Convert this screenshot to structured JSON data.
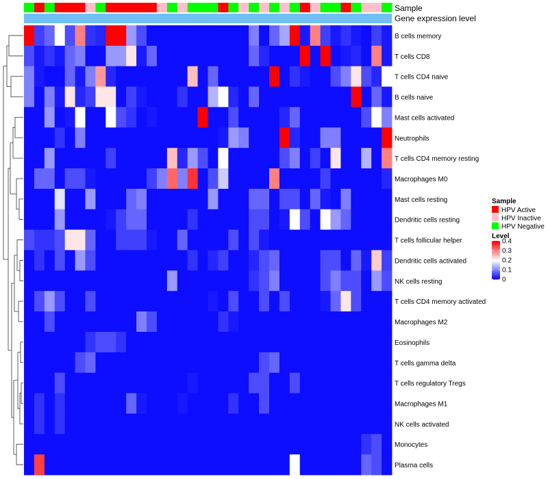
{
  "chart_data": {
    "type": "heatmap",
    "annotation_tracks": [
      "Sample",
      "Gene expression level"
    ],
    "rows": [
      "B cells memory",
      "T cells CD8",
      "T cells CD4 naive",
      "B cells naive",
      "Mast cells activated",
      "Neutrophils",
      "T cells CD4 memory resting",
      "Macrophages M0",
      "Mast cells resting",
      "Dendritic cells resting",
      "T cells follicular helper",
      "Dendritic cells activated",
      "NK cells resting",
      "T cells CD4 memory activated",
      "Macrophages M2",
      "Eosinophils",
      "T cells gamma delta",
      "T cells regulatory  Tregs",
      "Macrophages M1",
      "NK cells activated",
      "Monocytes",
      "Plasma cells"
    ],
    "sample_groups": [
      "N",
      "A",
      "N",
      "A",
      "A",
      "A",
      "I",
      "N",
      "A",
      "A",
      "A",
      "A",
      "A",
      "I",
      "N",
      "I",
      "N",
      "N",
      "N",
      "A",
      "N",
      "I",
      "N",
      "I",
      "N",
      "I",
      "N",
      "A",
      "I",
      "N",
      "N",
      "A",
      "N",
      "I",
      "I",
      "N"
    ],
    "values": [
      [
        0.4,
        0.05,
        0.08,
        0.2,
        0.06,
        0.3,
        0.04,
        0.03,
        0.4,
        0.4,
        0.12,
        0.06,
        0.01,
        0.01,
        0.01,
        0.01,
        0.01,
        0.01,
        0.01,
        0.01,
        0.01,
        0.01,
        0.1,
        0.01,
        0.08,
        0.13,
        0.4,
        0.02,
        0.3,
        0.05,
        0.02,
        0.04,
        0.02,
        0.01,
        0.05,
        0.02
      ],
      [
        0.06,
        0.02,
        0.04,
        0.02,
        0.08,
        0.1,
        0.01,
        0.01,
        0.12,
        0.12,
        0.22,
        0.02,
        0.08,
        0.01,
        0.01,
        0.01,
        0.01,
        0.01,
        0.01,
        0.01,
        0.01,
        0.01,
        0.08,
        0.03,
        0.01,
        0.01,
        0.01,
        0.4,
        0.01,
        0.4,
        0.01,
        0.02,
        0.03,
        0.01,
        0.3,
        0.02
      ],
      [
        0.1,
        0.02,
        0.01,
        0.01,
        0.08,
        0.02,
        0.1,
        0.28,
        0.03,
        0.01,
        0.01,
        0.01,
        0.01,
        0.01,
        0.01,
        0.01,
        0.25,
        0.01,
        0.08,
        0.01,
        0.01,
        0.01,
        0.01,
        0.01,
        0.4,
        0.01,
        0.04,
        0.02,
        0.01,
        0.01,
        0.06,
        0.1,
        0.22,
        0.06,
        0.03,
        0.2
      ],
      [
        0.1,
        0.01,
        0.1,
        0.02,
        0.22,
        0.03,
        0.05,
        0.22,
        0.22,
        0.01,
        0.05,
        0.02,
        0.01,
        0.01,
        0.01,
        0.04,
        0.01,
        0.01,
        0.14,
        0.2,
        0.03,
        0.01,
        0.08,
        0.01,
        0.01,
        0.01,
        0.01,
        0.01,
        0.01,
        0.01,
        0.01,
        0.01,
        0.4,
        0.01,
        0.08,
        0.02
      ],
      [
        0.01,
        0.01,
        0.12,
        0.01,
        0.02,
        0.2,
        0.01,
        0.01,
        0.2,
        0.06,
        0.04,
        0.01,
        0.02,
        0.01,
        0.01,
        0.01,
        0.01,
        0.4,
        0.01,
        0.01,
        0.06,
        0.01,
        0.01,
        0.01,
        0.01,
        0.03,
        0.08,
        0.01,
        0.01,
        0.01,
        0.01,
        0.01,
        0.01,
        0.06,
        0.2,
        0.1
      ],
      [
        0.01,
        0.01,
        0.01,
        0.04,
        0.01,
        0.1,
        0.01,
        0.01,
        0.01,
        0.01,
        0.01,
        0.01,
        0.01,
        0.01,
        0.01,
        0.01,
        0.01,
        0.01,
        0.01,
        0.02,
        0.12,
        0.1,
        0.01,
        0.01,
        0.01,
        0.4,
        0.03,
        0.01,
        0.01,
        0.1,
        0.1,
        0.01,
        0.01,
        0.01,
        0.01,
        0.4
      ],
      [
        0.01,
        0.01,
        0.12,
        0.01,
        0.01,
        0.01,
        0.01,
        0.01,
        0.05,
        0.01,
        0.01,
        0.01,
        0.01,
        0.01,
        0.25,
        0.03,
        0.12,
        0.06,
        0.01,
        0.2,
        0.01,
        0.01,
        0.01,
        0.01,
        0.01,
        0.06,
        0.1,
        0.01,
        0.05,
        0.01,
        0.22,
        0.01,
        0.01,
        0.14,
        0.01,
        0.3
      ],
      [
        0.01,
        0.08,
        0.08,
        0.01,
        0.06,
        0.06,
        0.02,
        0.01,
        0.01,
        0.01,
        0.01,
        0.01,
        0.05,
        0.1,
        0.32,
        0.1,
        0.36,
        0.01,
        0.06,
        0.16,
        0.01,
        0.01,
        0.01,
        0.01,
        0.3,
        0.01,
        0.01,
        0.01,
        0.01,
        0.05,
        0.01,
        0.01,
        0.01,
        0.01,
        0.01,
        0.03
      ],
      [
        0.01,
        0.01,
        0.01,
        0.18,
        0.01,
        0.01,
        0.12,
        0.01,
        0.01,
        0.01,
        0.08,
        0.1,
        0.01,
        0.01,
        0.01,
        0.01,
        0.01,
        0.01,
        0.12,
        0.01,
        0.01,
        0.01,
        0.08,
        0.08,
        0.01,
        0.06,
        0.06,
        0.01,
        0.08,
        0.02,
        0.01,
        0.1,
        0.01,
        0.01,
        0.01,
        0.01
      ],
      [
        0.01,
        0.01,
        0.01,
        0.12,
        0.01,
        0.01,
        0.01,
        0.01,
        0.02,
        0.05,
        0.08,
        0.08,
        0.01,
        0.01,
        0.01,
        0.01,
        0.04,
        0.01,
        0.01,
        0.01,
        0.01,
        0.01,
        0.06,
        0.06,
        0.01,
        0.02,
        0.2,
        0.06,
        0.01,
        0.2,
        0.12,
        0.08,
        0.01,
        0.01,
        0.01,
        0.01
      ],
      [
        0.06,
        0.04,
        0.04,
        0.06,
        0.22,
        0.22,
        0.08,
        0.01,
        0.01,
        0.05,
        0.05,
        0.05,
        0.02,
        0.01,
        0.01,
        0.08,
        0.01,
        0.01,
        0.01,
        0.01,
        0.06,
        0.01,
        0.06,
        0.02,
        0.01,
        0.01,
        0.01,
        0.01,
        0.01,
        0.01,
        0.01,
        0.01,
        0.01,
        0.01,
        0.01,
        0.01
      ],
      [
        0.01,
        0.04,
        0.01,
        0.06,
        0.01,
        0.12,
        0.06,
        0.01,
        0.01,
        0.01,
        0.01,
        0.01,
        0.01,
        0.01,
        0.01,
        0.01,
        0.04,
        0.01,
        0.03,
        0.05,
        0.01,
        0.01,
        0.03,
        0.06,
        0.08,
        0.01,
        0.01,
        0.01,
        0.01,
        0.06,
        0.06,
        0.01,
        0.08,
        0.02,
        0.24,
        0.05
      ],
      [
        0.01,
        0.01,
        0.01,
        0.01,
        0.01,
        0.01,
        0.01,
        0.01,
        0.01,
        0.01,
        0.01,
        0.01,
        0.01,
        0.01,
        0.12,
        0.01,
        0.01,
        0.01,
        0.01,
        0.01,
        0.01,
        0.01,
        0.04,
        0.06,
        0.1,
        0.01,
        0.01,
        0.01,
        0.01,
        0.06,
        0.1,
        0.06,
        0.06,
        0.01,
        0.12,
        0.06
      ],
      [
        0.01,
        0.06,
        0.12,
        0.06,
        0.01,
        0.01,
        0.06,
        0.01,
        0.01,
        0.01,
        0.01,
        0.01,
        0.01,
        0.01,
        0.01,
        0.01,
        0.01,
        0.01,
        0.02,
        0.01,
        0.06,
        0.01,
        0.01,
        0.06,
        0.01,
        0.06,
        0.01,
        0.01,
        0.01,
        0.02,
        0.08,
        0.22,
        0.06,
        0.01,
        0.01,
        0.01
      ],
      [
        0.01,
        0.01,
        0.06,
        0.01,
        0.01,
        0.01,
        0.01,
        0.01,
        0.01,
        0.01,
        0.01,
        0.1,
        0.06,
        0.01,
        0.01,
        0.01,
        0.01,
        0.01,
        0.01,
        0.04,
        0.02,
        0.01,
        0.01,
        0.01,
        0.01,
        0.01,
        0.01,
        0.01,
        0.01,
        0.01,
        0.01,
        0.01,
        0.01,
        0.01,
        0.01,
        0.01
      ],
      [
        0.01,
        0.01,
        0.01,
        0.01,
        0.01,
        0.01,
        0.04,
        0.06,
        0.06,
        0.04,
        0.01,
        0.01,
        0.01,
        0.01,
        0.01,
        0.01,
        0.01,
        0.01,
        0.01,
        0.01,
        0.01,
        0.01,
        0.01,
        0.01,
        0.01,
        0.01,
        0.01,
        0.01,
        0.01,
        0.01,
        0.01,
        0.01,
        0.01,
        0.01,
        0.01,
        0.01
      ],
      [
        0.01,
        0.01,
        0.01,
        0.01,
        0.01,
        0.06,
        0.08,
        0.01,
        0.01,
        0.01,
        0.01,
        0.01,
        0.01,
        0.01,
        0.01,
        0.01,
        0.01,
        0.01,
        0.01,
        0.01,
        0.01,
        0.01,
        0.01,
        0.06,
        0.08,
        0.01,
        0.01,
        0.01,
        0.01,
        0.01,
        0.01,
        0.01,
        0.01,
        0.01,
        0.01,
        0.01
      ],
      [
        0.01,
        0.01,
        0.01,
        0.06,
        0.01,
        0.01,
        0.01,
        0.01,
        0.01,
        0.01,
        0.01,
        0.01,
        0.01,
        0.01,
        0.01,
        0.01,
        0.02,
        0.01,
        0.01,
        0.01,
        0.01,
        0.01,
        0.06,
        0.06,
        0.01,
        0.01,
        0.06,
        0.01,
        0.01,
        0.01,
        0.01,
        0.01,
        0.01,
        0.01,
        0.01,
        0.01
      ],
      [
        0.01,
        0.04,
        0.01,
        0.04,
        0.01,
        0.01,
        0.01,
        0.01,
        0.01,
        0.01,
        0.08,
        0.02,
        0.01,
        0.01,
        0.01,
        0.02,
        0.01,
        0.01,
        0.01,
        0.01,
        0.04,
        0.01,
        0.01,
        0.06,
        0.01,
        0.01,
        0.01,
        0.01,
        0.01,
        0.01,
        0.01,
        0.01,
        0.01,
        0.01,
        0.01,
        0.01
      ],
      [
        0.01,
        0.04,
        0.01,
        0.04,
        0.01,
        0.01,
        0.01,
        0.01,
        0.01,
        0.01,
        0.01,
        0.01,
        0.01,
        0.01,
        0.01,
        0.01,
        0.01,
        0.01,
        0.01,
        0.01,
        0.01,
        0.01,
        0.01,
        0.01,
        0.01,
        0.01,
        0.01,
        0.01,
        0.01,
        0.01,
        0.01,
        0.01,
        0.01,
        0.01,
        0.01,
        0.01
      ],
      [
        0.01,
        0.01,
        0.01,
        0.01,
        0.01,
        0.01,
        0.01,
        0.01,
        0.01,
        0.01,
        0.01,
        0.01,
        0.01,
        0.01,
        0.01,
        0.01,
        0.01,
        0.01,
        0.01,
        0.01,
        0.01,
        0.01,
        0.01,
        0.01,
        0.01,
        0.01,
        0.01,
        0.01,
        0.01,
        0.01,
        0.01,
        0.01,
        0.01,
        0.04,
        0.06,
        0.01
      ],
      [
        0.01,
        0.35,
        0.01,
        0.01,
        0.01,
        0.01,
        0.01,
        0.01,
        0.01,
        0.01,
        0.01,
        0.01,
        0.01,
        0.01,
        0.01,
        0.01,
        0.01,
        0.01,
        0.01,
        0.01,
        0.01,
        0.01,
        0.01,
        0.01,
        0.01,
        0.01,
        0.2,
        0.01,
        0.01,
        0.01,
        0.01,
        0.01,
        0.01,
        0.08,
        0.06,
        0.01
      ]
    ],
    "legend_sample": {
      "title": "Sample",
      "entries": [
        {
          "key": "A",
          "label": "HPV Active",
          "color": "#ff0000"
        },
        {
          "key": "I",
          "label": "HPV Inactive",
          "color": "#ffc0cb"
        },
        {
          "key": "N",
          "label": "HPV Negative",
          "color": "#00ff00"
        }
      ]
    },
    "legend_level": {
      "title": "Level",
      "ticks": [
        0,
        0.1,
        0.2,
        0.3,
        0.4
      ],
      "tick_labels": [
        "0",
        "0.1",
        "0.2",
        "0.3",
        "0.4"
      ],
      "colors": [
        "#0000ff",
        "#ffffff",
        "#ff0000"
      ],
      "range": [
        0,
        0.4
      ]
    },
    "expression_bar_color": "#70bff5"
  }
}
